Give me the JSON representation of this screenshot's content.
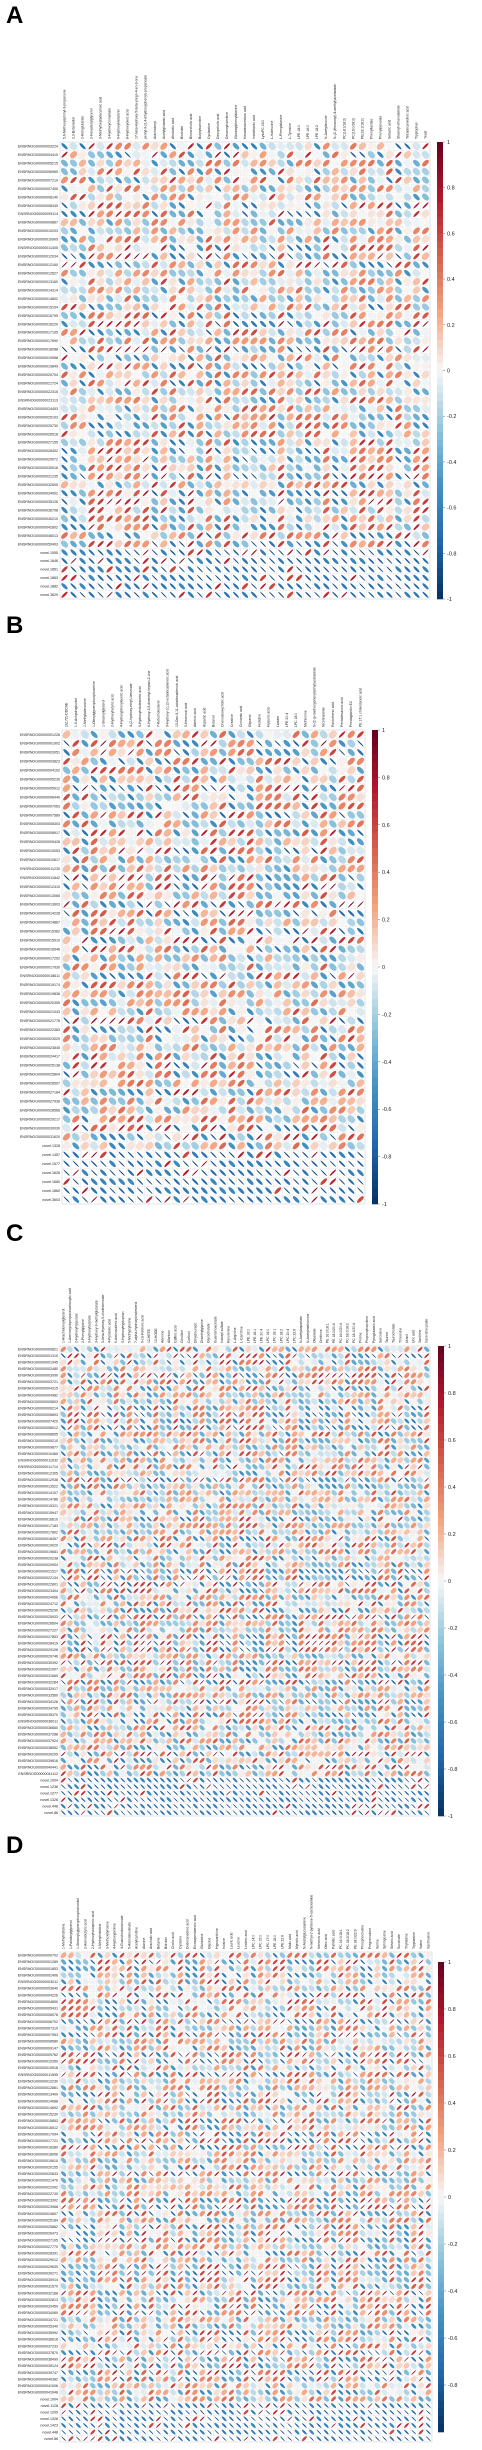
{
  "figure": {
    "panel_letters": [
      "A",
      "B",
      "C",
      "D"
    ]
  },
  "colors": {
    "negative": "#053061",
    "mid": "#f7f7f7",
    "positive": "#67001f"
  },
  "chart_data": [
    {
      "type": "heatmap",
      "subtype": "correlation ellipse plot",
      "panel": "A",
      "columns": [
        "5,6-Methoxysphinyl-3-propanone",
        "2,3-Butanediol",
        "2-Ketoglutarate",
        "2-Hexadecylglycerol",
        "3-Methylheptadecanoic acid",
        "3-Hydroxycinnamate",
        "6-Hydroxymelatonin",
        "8-Hydroxyoleic acid",
        "17-beta-Hydroxy-5-beta-pregn-4-en-3-one",
        "pentyl-3-(2,4-dihydroxyphenyl)-propanoate",
        "Arachidonyl",
        "Acetylglutamic acid",
        "Atrolactic acid",
        "Biotinate",
        "Bisnorcholic acid",
        "Butyrylcarnitine",
        "Cyclamine",
        "Deoxycholic acid",
        "Decanoylcarnitine",
        "Glutamylphenylalanine",
        "Hexadecanedioic acid",
        "Indolelactic acid",
        "LysoPC 16:0",
        "L-Isoleucine",
        "L-Phenylalanine",
        "L-Tyrosine",
        "LPE 18:0",
        "LPE 16:0",
        "LPE 18:2",
        "N-Acetylleucine",
        "N-(2-(Hexanoyl)-4-methyl)acetamide",
        "PC(18:1/18:2)",
        "PC(16:0/18:2)",
        "PE(18:1/18:2)",
        "Phenyllactate",
        "Phenylpyruvate",
        "Sebacic acid",
        "Stearoyl ethanolamide",
        "Tetradecanedioic acid",
        "Tryptophan",
        "Yeast"
      ],
      "rows": [
        "ENSRNOG00000003224",
        "ENSRNOG00000004410",
        "ENSRNOG00000005215",
        "ENSRNOG00000006960",
        "ENSRNOG00000007219",
        "ENSRNOG00000007405",
        "ENSRNOG00000008140",
        "ENSRNOG00000008340",
        "ENSRNOG00000009114",
        "ENSRNOG00000009867",
        "ENSRNOG00000010203",
        "ENSRNOG00000010909",
        "ENSRNOG00000011405",
        "ENSRNOG00000012034",
        "ENSRNOG00000012160",
        "ENSRNOG00000012627",
        "ENSRNOG00000013160",
        "ENSRNOG00000014314",
        "ENSRNOG00000014802",
        "ENSRNOG00000015104",
        "ENSRNOG00000015795",
        "ENSRNOG00000016220",
        "ENSRNOG00000017105",
        "ENSRNOG00000017690",
        "ENSRNOG00000018088",
        "ENSRNOG00000019068",
        "ENSRNOG00000019849",
        "ENSRNOG00000020704",
        "ENSRNOG00000021724",
        "ENSRNOG00000022315",
        "ENSRNOG00000023113",
        "ENSRNOG00000024453",
        "ENSRNOG00000025103",
        "ENSRNOG00000025730",
        "ENSRNOG00000026518",
        "ENSRNOG00000027155",
        "ENSRNOG00000028402",
        "ENSRNOG00000029072",
        "ENSRNOG00000030016",
        "ENSRNOG00000031235",
        "ENSRNOG00000032605",
        "ENSRNOG00000034002",
        "ENSRNOG00000035126",
        "ENSRNOG00000036708",
        "ENSRNOG00000040210",
        "ENSRNOG00000042802",
        "ENSRNOG00000046013",
        "ENSRNOG00000050403",
        "novel.1555",
        "novel.1646",
        "novel.1851",
        "novel.1863",
        "novel.1882",
        "novel.3629"
      ],
      "colorbar_ticks": [
        "1",
        "0.8",
        "0.6",
        "0.4",
        "0.2",
        "0",
        "-0.2",
        "-0.4",
        "-0.6",
        "-0.8",
        "-1"
      ],
      "value_range": [
        -1,
        1
      ],
      "seed": 17
    },
    {
      "type": "heatmap",
      "subtype": "correlation ellipse plot",
      "panel": "B",
      "columns": [
        "(3Z,7Z)-DDCNE",
        "1,5-Anhydroglucitol",
        "1-Methyladenosine",
        "1-Oleoylglycerophosphoserine",
        "1-Stearoylglycerol",
        "2-Hydroxybutyric acid",
        "4-Hydroxyphenylacetic acid",
        "4-(2-hydroxy-ethyl)-benzoate",
        "5-Hydroxyindoleacetic acid",
        "6-Hydroxy-3,5-dimethyl-heptan-2-one",
        "7-Ketocholesterol",
        "9-Hydroxy-10,12-octadecadienoic acid",
        "13-Oxo-9,11-octadecadienoic acid",
        "5-Hexenoic acid",
        "Adrenic acid",
        "Aspartic acid",
        "Butanol",
        "Chenodeoxycholic acid",
        "Creatine",
        "Cinnamic acid",
        "Glycerol",
        "Histidine",
        "Hippuric acid",
        "Lactate",
        "LPE 20:4",
        "LPC 18:0",
        "Methionine",
        "N-(2-(p-methoxyphenyl)ethyl)acetamide",
        "Nicotinamide",
        "Pantothenic acid",
        "Pentadecanoic acid",
        "Prostaglandin E2",
        "PE 17:1 cholestanoic acid"
      ],
      "rows": [
        "ENSRNOG00000001226",
        "ENSRNOG00000001902",
        "ENSRNOG00000003051",
        "ENSRNOG00000003823",
        "ENSRNOG00000004102",
        "ENSRNOG00000005230",
        "ENSRNOG00000005912",
        "ENSRNOG00000006440",
        "ENSRNOG00000007063",
        "ENSRNOG00000007589",
        "ENSRNOG00000008303",
        "ENSRNOG00000008917",
        "ENSRNOG00000009426",
        "ENSRNOG00000010053",
        "ENSRNOG00000010617",
        "ENSRNOG00000011230",
        "ENSRNOG00000011842",
        "ENSRNOG00000012410",
        "ENSRNOG00000013065",
        "ENSRNOG00000013603",
        "ENSRNOG00000014228",
        "ENSRNOG00000014867",
        "ENSRNOG00000015362",
        "ENSRNOG00000015910",
        "ENSRNOG00000016546",
        "ENSRNOG00000017202",
        "ENSRNOG00000017930",
        "ENSRNOG00000018611",
        "ENSRNOG00000019174",
        "ENSRNOG00000019836",
        "ENSRNOG00000020355",
        "ENSRNOG00000021043",
        "ENSRNOG00000021776",
        "ENSRNOG00000022383",
        "ENSRNOG00000023029",
        "ENSRNOG00000023845",
        "ENSRNOG00000024417",
        "ENSRNOG00000025138",
        "ENSRNOG00000025804",
        "ENSRNOG00000026507",
        "ENSRNOG00000027184",
        "ENSRNOG00000027936",
        "ENSRNOG00000028566",
        "ENSRNOG00000029217",
        "ENSRNOG00000030030",
        "ENSRNOG00000031620",
        "novel.1328",
        "novel.1457",
        "novel.1577",
        "novel.1626",
        "novel.1680",
        "novel.1860",
        "novel.3603"
      ],
      "colorbar_ticks": [
        "1",
        "0.8",
        "0.6",
        "0.4",
        "0.2",
        "0",
        "-0.2",
        "-0.4",
        "-0.6",
        "-0.8",
        "-1"
      ],
      "value_range": [
        -1,
        1
      ],
      "seed": 41
    },
    {
      "type": "heatmap",
      "subtype": "correlation ellipse plot",
      "panel": "C",
      "columns": [
        "1-Arachidonoylglycerol",
        "1-Aminocyclopropanecarboxylic acid",
        "2-Hydroxyhippurate",
        "2-Phenylglycine",
        "3-Hydroxybutyrate",
        "3-Hydroxy-3-methylglutarate",
        "3-beta-Hydroxy-5-cholestenoate",
        "4-Pyridoxic acid",
        "5-Aminovaleric acid",
        "5-Hydroxytryptophan",
        "5-Methylcytosine",
        "7-alpha-Hydroxycholesterol",
        "9-cis-Retinoic acid",
        "12-HETE",
        "13-HODE",
        "Adenine",
        "Allantoin",
        "Caffeic acid",
        "Citrulline",
        "Cortisol",
        "Dihydrouracil",
        "Dimethylglycine",
        "Glycocholate",
        "Guanidinoacetate",
        "Indoxyl sulfate",
        "Kynurenine",
        "L-Arginine",
        "L-Carnitine",
        "LPE 16:0",
        "LPE 18:1",
        "LPE 20:4",
        "LPC 16:0",
        "LPC 18:1",
        "LPC 18:2",
        "LPC 20:4",
        "LPC 22:6",
        "N-Acetylaspartate",
        "N-Acetylmethionine",
        "Oleamide",
        "Ornithine",
        "PE 16:0/18:1",
        "PE 18:0/20:4",
        "PC 16:0/20:4",
        "PC 18:0/18:2",
        "PC 18:1/20:4",
        "Proline",
        "Propionylcarnitine",
        "Pyroglutamic acid",
        "Sarcosine",
        "Taurine",
        "Taurocholate",
        "Threonine",
        "Uracil",
        "Uric acid",
        "Xanthine",
        "trans-Urocanate"
      ],
      "rows": [
        "ENSRNOG00000000821",
        "ENSRNOG00000001310",
        "ENSRNOG00000001945",
        "ENSRNOG00000002480",
        "ENSRNOG00000003090",
        "ENSRNOG00000003721",
        "ENSRNOG00000004315",
        "ENSRNOG00000004982",
        "ENSRNOG00000005603",
        "ENSRNOG00000006214",
        "ENSRNOG00000006893",
        "ENSRNOG00000007420",
        "ENSRNOG00000008012",
        "ENSRNOG00000008655",
        "ENSRNOG00000009210",
        "ENSRNOG00000009877",
        "ENSRNOG00000010460",
        "ENSRNOG00000011032",
        "ENSRNOG00000011714",
        "ENSRNOG00000012305",
        "ENSRNOG00000012938",
        "ENSRNOG00000013522",
        "ENSRNOG00000014107",
        "ENSRNOG00000014786",
        "ENSRNOG00000015321",
        "ENSRNOG00000015947",
        "ENSRNOG00000016610",
        "ENSRNOG00000017183",
        "ENSRNOG00000017802",
        "ENSRNOG00000018457",
        "ENSRNOG00000019020",
        "ENSRNOG00000019681",
        "ENSRNOG00000020238",
        "ENSRNOG00000020904",
        "ENSRNOG00000021517",
        "ENSRNOG00000022134",
        "ENSRNOG00000022801",
        "ENSRNOG00000023404",
        "ENSRNOG00000024066",
        "ENSRNOG00000024712",
        "ENSRNOG00000025290",
        "ENSRNOG00000025933",
        "ENSRNOG00000026604",
        "ENSRNOG00000027227",
        "ENSRNOG00000027853",
        "ENSRNOG00000028419",
        "ENSRNOG00000029108",
        "ENSRNOG00000029746",
        "ENSRNOG00000030392",
        "ENSRNOG00000031007",
        "ENSRNOG00000031660",
        "ENSRNOG00000032284",
        "ENSRNOG00000032917",
        "ENSRNOG00000033560",
        "ENSRNOG00000034126",
        "ENSRNOG00000034795",
        "ENSRNOG00000035370",
        "ENSRNOG00000036011",
        "ENSRNOG00000036660",
        "ENSRNOG00000037288",
        "ENSRNOG00000037924",
        "ENSRNOG00000038552",
        "ENSRNOG00000039205",
        "ENSRNOG00000039816",
        "ENSRNOG00000040441",
        "ENSRNOG00000041112",
        "novel.1004",
        "novel.1236",
        "novel.1277",
        "novel.1328",
        "novel.448",
        "novel.86"
      ],
      "colorbar_ticks": [
        "1",
        "0.8",
        "0.6",
        "0.4",
        "0.2",
        "0",
        "-0.2",
        "-0.4",
        "-0.6",
        "-0.8",
        "-1"
      ],
      "value_range": [
        -1,
        1
      ],
      "seed": 73
    },
    {
      "type": "heatmap",
      "subtype": "correlation ellipse plot",
      "panel": "D",
      "columns": [
        "1-Methylhistidine",
        "1-Palmitoylglycerol",
        "1-Stearoyl-glycerophosphoinositol",
        "2-Aminobutyric acid",
        "2-Hydroxyisocaproic acid",
        "3-Methylhistidine",
        "3-Methoxytyrosine",
        "4-Hydroxyproline",
        "4-Guanidinobutanoate",
        "5-Aminolevulinate",
        "Acetylcarnitine",
        "Alanine",
        "Arachidic acid",
        "Betaine",
        "Bilirubin",
        "Cholic acid",
        "Cysteine",
        "Dodecanedioic acid",
        "Eicosapentaenoic acid",
        "Glutamine",
        "Glycine",
        "Hypoxanthine",
        "Inosine",
        "Lauric acid",
        "Leucine",
        "Linoleic acid",
        "LPC 14:0",
        "LPC 15:0",
        "LPC 17:0",
        "LPE 18:0",
        "LPE 22:6",
        "Malic acid",
        "Myristic acid",
        "N-Acetylglucosamine",
        "N-methyl-2-pyridone-5-carboxamide",
        "Nervonic acid",
        "Oleic acid",
        "Palmitic acid",
        "PC 16:0/18:1",
        "PC 18:2/18:2",
        "PE 18:0/22:6",
        "Phosphocholine",
        "Pregnenolone",
        "Serine",
        "Sphingosine",
        "Stearic acid",
        "Succinate",
        "Thymidine",
        "Tryptamine",
        "Valine",
        "Xanthosine"
      ],
      "rows": [
        "ENSRNOG00000000702",
        "ENSRNOG00000001289",
        "ENSRNOG00000001853",
        "ENSRNOG00000002406",
        "ENSRNOG00000003011",
        "ENSRNOG00000003640",
        "ENSRNOG00000004226",
        "ENSRNOG00000004890",
        "ENSRNOG00000005431",
        "ENSRNOG00000006078",
        "ENSRNOG00000006702",
        "ENSRNOG00000007310",
        "ENSRNOG00000007953",
        "ENSRNOG00000008580",
        "ENSRNOG00000009147",
        "ENSRNOG00000009762",
        "ENSRNOG00000010350",
        "ENSRNOG00000010918",
        "ENSRNOG00000011595",
        "ENSRNOG00000012230",
        "ENSRNOG00000012861",
        "ENSRNOG00000013409",
        "ENSRNOG00000014088",
        "ENSRNOG00000014692",
        "ENSRNOG00000015230",
        "ENSRNOG00000015853",
        "ENSRNOG00000016512",
        "ENSRNOG00000017094",
        "ENSRNOG00000017721",
        "ENSRNOG00000018380",
        "ENSRNOG00000018956",
        "ENSRNOG00000019610",
        "ENSRNOG00000020155",
        "ENSRNOG00000020833",
        "ENSRNOG00000021476",
        "ENSRNOG00000022092",
        "ENSRNOG00000022740",
        "ENSRNOG00000023302",
        "ENSRNOG00000023968",
        "ENSRNOG00000024607",
        "ENSRNOG00000025184",
        "ENSRNOG00000025862",
        "ENSRNOG00000026473",
        "ENSRNOG00000027105",
        "ENSRNOG00000027770",
        "ENSRNOG00000028391",
        "ENSRNOG00000029012",
        "ENSRNOG00000029630",
        "ENSRNOG00000030271",
        "ENSRNOG00000030914",
        "ENSRNOG00000031570",
        "ENSRNOG00000032188",
        "ENSRNOG00000032813",
        "ENSRNOG00000033459",
        "ENSRNOG00000034060",
        "ENSRNOG00000034721",
        "ENSRNOG00000035340",
        "ENSRNOG00000035992",
        "ENSRNOG00000036616",
        "ENSRNOG00000037233",
        "ENSRNOG00000037870",
        "ENSRNOG00000038490",
        "ENSRNOG00000039124",
        "ENSRNOG00000039747",
        "ENSRNOG00000040382",
        "ENSRNOG00000041006",
        "ENSRNOG00000041648",
        "novel.1004",
        "novel.1128",
        "novel.1209",
        "novel.1326",
        "novel.1423",
        "novel.448",
        "novel.86"
      ],
      "colorbar_ticks": [
        "1",
        "0.8",
        "0.6",
        "0.4",
        "0.2",
        "0",
        "-0.2",
        "-0.4",
        "-0.6",
        "-0.8"
      ],
      "value_range": [
        -1,
        1
      ],
      "seed": 29
    }
  ]
}
